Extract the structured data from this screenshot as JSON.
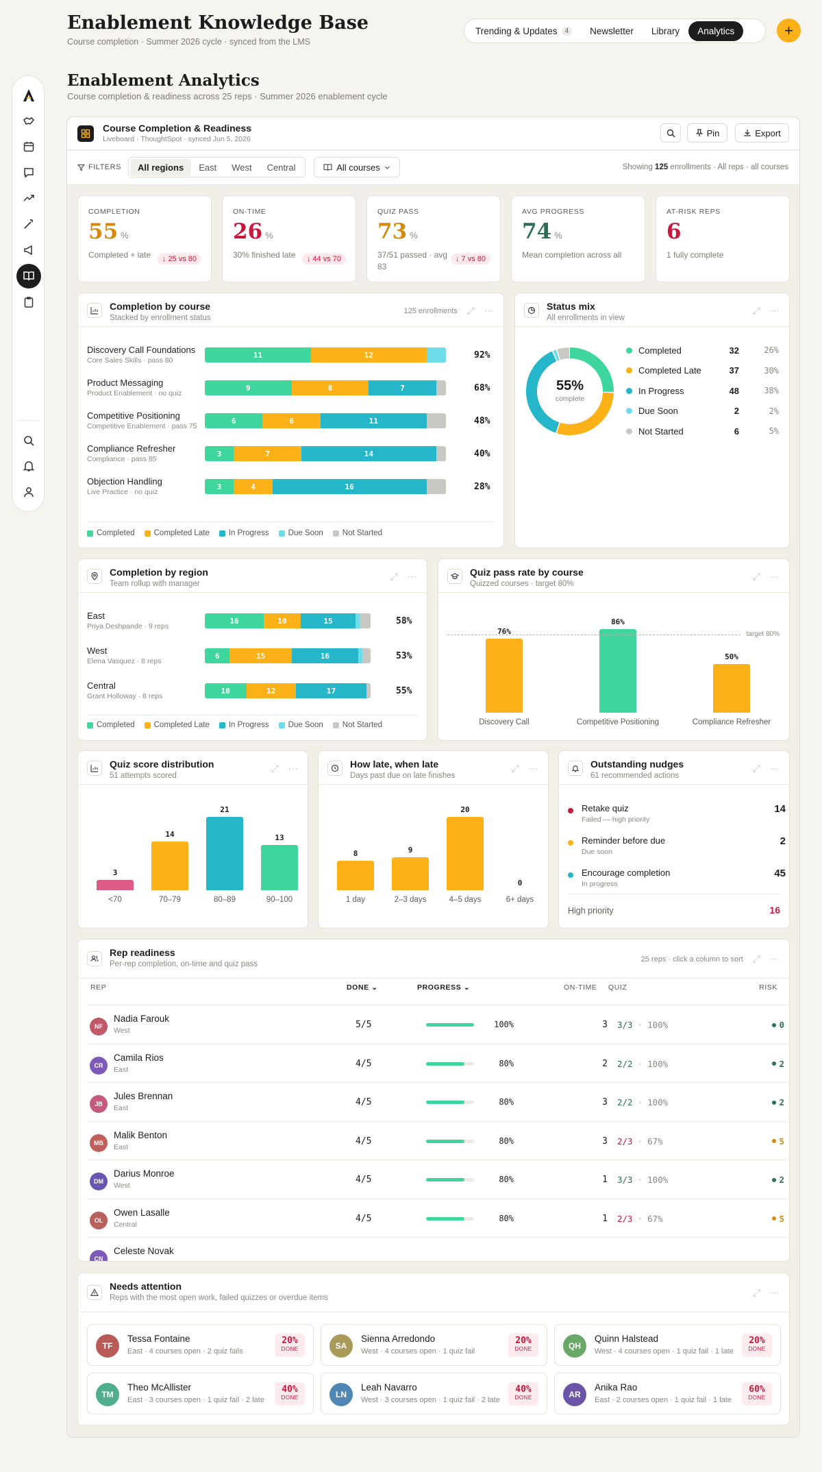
{
  "header": {
    "title": "Enablement Knowledge Base",
    "subtitle": "Course completion · Summer 2026 cycle · synced from the LMS",
    "nav": [
      {
        "label": "Trending & Updates",
        "count": "4"
      },
      {
        "label": "Newsletter"
      },
      {
        "label": "Library"
      },
      {
        "label": "Analytics",
        "active": true
      }
    ],
    "add_label": "+"
  },
  "sidebar": {
    "icons": [
      "logo-icon",
      "handshake-icon",
      "calendar-icon",
      "chat-icon",
      "trending-icon",
      "magic-wand-icon",
      "megaphone-icon",
      "book-icon",
      "clipboard-icon",
      "search-icon",
      "bell-icon",
      "user-icon"
    ],
    "active": "book-icon"
  },
  "section": {
    "title": "Enablement Analytics",
    "subtitle": "Course completion & readiness across 25 reps · Summer 2026 enablement cycle"
  },
  "liveboard": {
    "title": "Course Completion & Readiness",
    "subtitle": "Liveboard · ThoughtSpot · synced Jun 5, 2026",
    "pin_label": "Pin",
    "export_label": "Export"
  },
  "filters": {
    "label": "FILTERS",
    "regions": [
      "All regions",
      "East",
      "West",
      "Central"
    ],
    "active_region": "All regions",
    "course_select": "All courses",
    "showing_prefix": "Showing ",
    "showing_count": "125",
    "showing_suffix": " enrollments · All reps · all courses"
  },
  "kpis": [
    {
      "label": "COMPLETION",
      "value": "55",
      "unit": "%",
      "note": "Completed + late",
      "delta": "↓ 25 vs 80",
      "color": "#d58a0b"
    },
    {
      "label": "ON-TIME",
      "value": "26",
      "unit": "%",
      "note": "30% finished late",
      "delta": "↓ 44 vs 70",
      "color": "#c8173c"
    },
    {
      "label": "QUIZ PASS",
      "value": "73",
      "unit": "%",
      "note": "37/51 passed · avg 83",
      "delta": "↓ 7 vs 80",
      "color": "#d58a0b"
    },
    {
      "label": "AVG PROGRESS",
      "value": "74",
      "unit": "%",
      "note": "Mean completion across all",
      "delta": "",
      "color": "#2c6e55"
    },
    {
      "label": "AT-RISK REPS",
      "value": "6",
      "unit": "",
      "note": "1 fully complete",
      "delta": "",
      "color": "#c8173c"
    }
  ],
  "colors": {
    "completed": "#3fd69d",
    "late": "#fbb117",
    "in_progress": "#25b6c9",
    "due_soon": "#6fdcea",
    "not_started": "#c9c7c2",
    "danger": "#c8173c",
    "quiz_fail": "#dd5c85"
  },
  "legend": [
    "Completed",
    "Completed Late",
    "In Progress",
    "Due Soon",
    "Not Started"
  ],
  "by_course": {
    "title": "Completion by course",
    "subtitle": "Stacked by enrollment status",
    "meta": "125 enrollments",
    "rows": [
      {
        "name": "Discovery Call Foundations",
        "sub": "Core Sales Skills · pass 80",
        "segments": [
          11,
          12,
          0,
          2,
          0
        ],
        "pct": "92%"
      },
      {
        "name": "Product Messaging",
        "sub": "Product Enablement · no quiz",
        "segments": [
          9,
          8,
          7,
          0,
          1
        ],
        "pct": "68%"
      },
      {
        "name": "Competitive Positioning",
        "sub": "Competitive Enablement · pass 75",
        "segments": [
          6,
          6,
          11,
          0,
          2
        ],
        "pct": "48%"
      },
      {
        "name": "Compliance Refresher",
        "sub": "Compliance · pass 85",
        "segments": [
          3,
          7,
          14,
          0,
          1
        ],
        "pct": "40%"
      },
      {
        "name": "Objection Handling",
        "sub": "Live Practice · no quiz",
        "segments": [
          3,
          4,
          16,
          0,
          2
        ],
        "pct": "28%"
      }
    ]
  },
  "status_mix": {
    "title": "Status mix",
    "subtitle": "All enrollments in view",
    "center_value": "55%",
    "center_label": "complete",
    "items": [
      {
        "label": "Completed",
        "count": "32",
        "pct": "26%"
      },
      {
        "label": "Completed Late",
        "count": "37",
        "pct": "30%"
      },
      {
        "label": "In Progress",
        "count": "48",
        "pct": "38%"
      },
      {
        "label": "Due Soon",
        "count": "2",
        "pct": "2%"
      },
      {
        "label": "Not Started",
        "count": "6",
        "pct": "5%"
      }
    ]
  },
  "by_region": {
    "title": "Completion by region",
    "subtitle": "Team rollup with manager",
    "rows": [
      {
        "name": "East",
        "sub": "Priya Deshpande · 9 reps",
        "segments": [
          16,
          10,
          15,
          1,
          3
        ],
        "pct": "58%"
      },
      {
        "name": "West",
        "sub": "Elena Vasquez · 8 reps",
        "segments": [
          6,
          15,
          16,
          1,
          2
        ],
        "pct": "53%"
      },
      {
        "name": "Central",
        "sub": "Grant Holloway · 8 reps",
        "segments": [
          10,
          12,
          17,
          0,
          1
        ],
        "pct": "55%"
      }
    ]
  },
  "chart_data": [
    {
      "type": "bar",
      "title": "Quiz pass rate by course",
      "subtitle": "Quizzed courses · target 80%",
      "categories": [
        "Discovery Call",
        "Competitive Positioning",
        "Compliance Refresher"
      ],
      "values": [
        76,
        86,
        50
      ],
      "value_labels": [
        "76%",
        "86%",
        "50%"
      ],
      "target_label": "target 80%",
      "ylim": [
        0,
        100
      ]
    },
    {
      "type": "bar",
      "title": "Quiz score distribution",
      "subtitle": "51 attempts scored",
      "categories": [
        "<70",
        "70–79",
        "80–89",
        "90–100"
      ],
      "values": [
        3,
        14,
        21,
        13
      ]
    },
    {
      "type": "bar",
      "title": "How late, when late",
      "subtitle": "Days past due on late finishes",
      "categories": [
        "1 day",
        "2–3 days",
        "4–5 days",
        "6+ days"
      ],
      "values": [
        8,
        9,
        20,
        0
      ]
    }
  ],
  "nudges": {
    "title": "Outstanding nudges",
    "subtitle": "61 recommended actions",
    "items": [
      {
        "label": "Retake quiz",
        "sub": "Failed — high priority",
        "value": "14",
        "color": "#c8173c"
      },
      {
        "label": "Reminder before due",
        "sub": "Due soon",
        "value": "2",
        "color": "#fbb117"
      },
      {
        "label": "Encourage completion",
        "sub": "In progress",
        "value": "45",
        "color": "#25b6c9"
      }
    ],
    "footer_label": "High priority",
    "footer_value": "16"
  },
  "rep_table": {
    "title": "Rep readiness",
    "subtitle": "Per-rep completion, on-time and quiz pass",
    "meta": "25 reps · click a column to sort",
    "headers": {
      "rep": "REP",
      "done": "DONE",
      "progress": "PROGRESS",
      "ontime": "ON-TIME",
      "quiz": "QUIZ",
      "risk": "RISK"
    },
    "rows": [
      {
        "initials": "NF",
        "name": "Nadia Farouk",
        "region": "West",
        "done": "5/5",
        "progress": 100,
        "pct": "100%",
        "ontime": "3",
        "quiz": "3/3",
        "quiz_pct": "100%",
        "quiz_fail": false,
        "risk": "0",
        "risk_color": "#2c6e55",
        "avatar": "#c05a68"
      },
      {
        "initials": "CR",
        "name": "Camila Rios",
        "region": "East",
        "done": "4/5",
        "progress": 80,
        "pct": "80%",
        "ontime": "2",
        "quiz": "2/2",
        "quiz_pct": "100%",
        "quiz_fail": false,
        "risk": "2",
        "risk_color": "#2c6e55",
        "avatar": "#7e5ab8"
      },
      {
        "initials": "JB",
        "name": "Jules Brennan",
        "region": "East",
        "done": "4/5",
        "progress": 80,
        "pct": "80%",
        "ontime": "3",
        "quiz": "2/2",
        "quiz_pct": "100%",
        "quiz_fail": false,
        "risk": "2",
        "risk_color": "#2c6e55",
        "avatar": "#c45a7c"
      },
      {
        "initials": "MB",
        "name": "Malik Benton",
        "region": "East",
        "done": "4/5",
        "progress": 80,
        "pct": "80%",
        "ontime": "3",
        "quiz": "2/3",
        "quiz_pct": "67%",
        "quiz_fail": true,
        "risk": "5",
        "risk_color": "#d58a0b",
        "avatar": "#c0605c"
      },
      {
        "initials": "DM",
        "name": "Darius Monroe",
        "region": "West",
        "done": "4/5",
        "progress": 80,
        "pct": "80%",
        "ontime": "1",
        "quiz": "3/3",
        "quiz_pct": "100%",
        "quiz_fail": false,
        "risk": "2",
        "risk_color": "#2c6e55",
        "avatar": "#6a55b0"
      },
      {
        "initials": "OL",
        "name": "Owen Lasalle",
        "region": "Central",
        "done": "4/5",
        "progress": 80,
        "pct": "80%",
        "ontime": "1",
        "quiz": "2/3",
        "quiz_pct": "67%",
        "quiz_fail": true,
        "risk": "5",
        "risk_color": "#d58a0b",
        "avatar": "#b8605a"
      },
      {
        "initials": "CN",
        "name": "Celeste Novak",
        "region": "",
        "done": "",
        "progress": 0,
        "pct": "",
        "ontime": "",
        "quiz": "",
        "quiz_pct": "",
        "quiz_fail": false,
        "risk": "",
        "risk_color": "#2c6e55",
        "avatar": "#7e5ab8"
      }
    ]
  },
  "attention": {
    "title": "Needs attention",
    "subtitle": "Reps with the most open work, failed quizzes or overdue items",
    "done_label": "DONE",
    "cards": [
      {
        "initials": "TF",
        "name": "Tessa Fontaine",
        "sub": "East · 4 courses open · 2 quiz fails",
        "pct": "20%",
        "avatar": "#b85a55"
      },
      {
        "initials": "SA",
        "name": "Sienna Arredondo",
        "sub": "West · 4 courses open · 1 quiz fail",
        "pct": "20%",
        "avatar": "#a99a5a"
      },
      {
        "initials": "QH",
        "name": "Quinn Halstead",
        "sub": "West · 4 courses open · 1 quiz fail · 1 late",
        "pct": "20%",
        "avatar": "#6aa86a"
      },
      {
        "initials": "TM",
        "name": "Theo McAllister",
        "sub": "East · 3 courses open · 1 quiz fail · 2 late",
        "pct": "40%",
        "avatar": "#4fae8e"
      },
      {
        "initials": "LN",
        "name": "Leah Navarro",
        "sub": "West · 3 courses open · 1 quiz fail · 2 late",
        "pct": "40%",
        "avatar": "#4f86b3"
      },
      {
        "initials": "AR",
        "name": "Anika Rao",
        "sub": "East · 2 courses open · 1 quiz fail · 1 late",
        "pct": "60%",
        "avatar": "#6a55a8"
      }
    ]
  }
}
